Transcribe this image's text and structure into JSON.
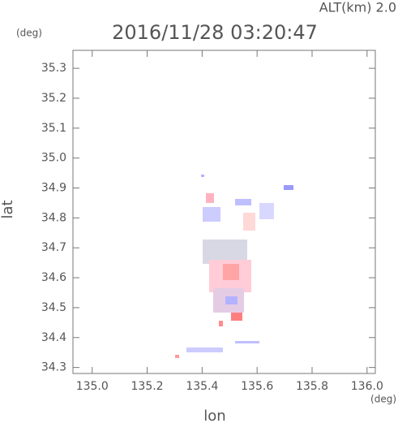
{
  "chart_data": {
    "type": "map",
    "title": "2016/11/28 03:20:47",
    "altitude_label": "ALT(km) 2.0",
    "y_unit": "(deg)",
    "x_unit": "(deg)",
    "xlabel": "lon",
    "ylabel": "lat",
    "xlim": [
      134.93,
      136.03
    ],
    "ylim": [
      34.28,
      35.36
    ],
    "xticks": [
      {
        "value": 135.0,
        "label": "135.0"
      },
      135.2,
      135.4,
      135.6,
      135.8,
      {
        "value": 136.0,
        "label": "136.0"
      }
    ],
    "yticks": [
      34.3,
      34.4,
      34.5,
      34.6,
      34.7,
      34.8,
      34.9,
      {
        "value": 35.0,
        "label": "35.0"
      },
      35.1,
      35.2,
      35.3
    ]
  }
}
